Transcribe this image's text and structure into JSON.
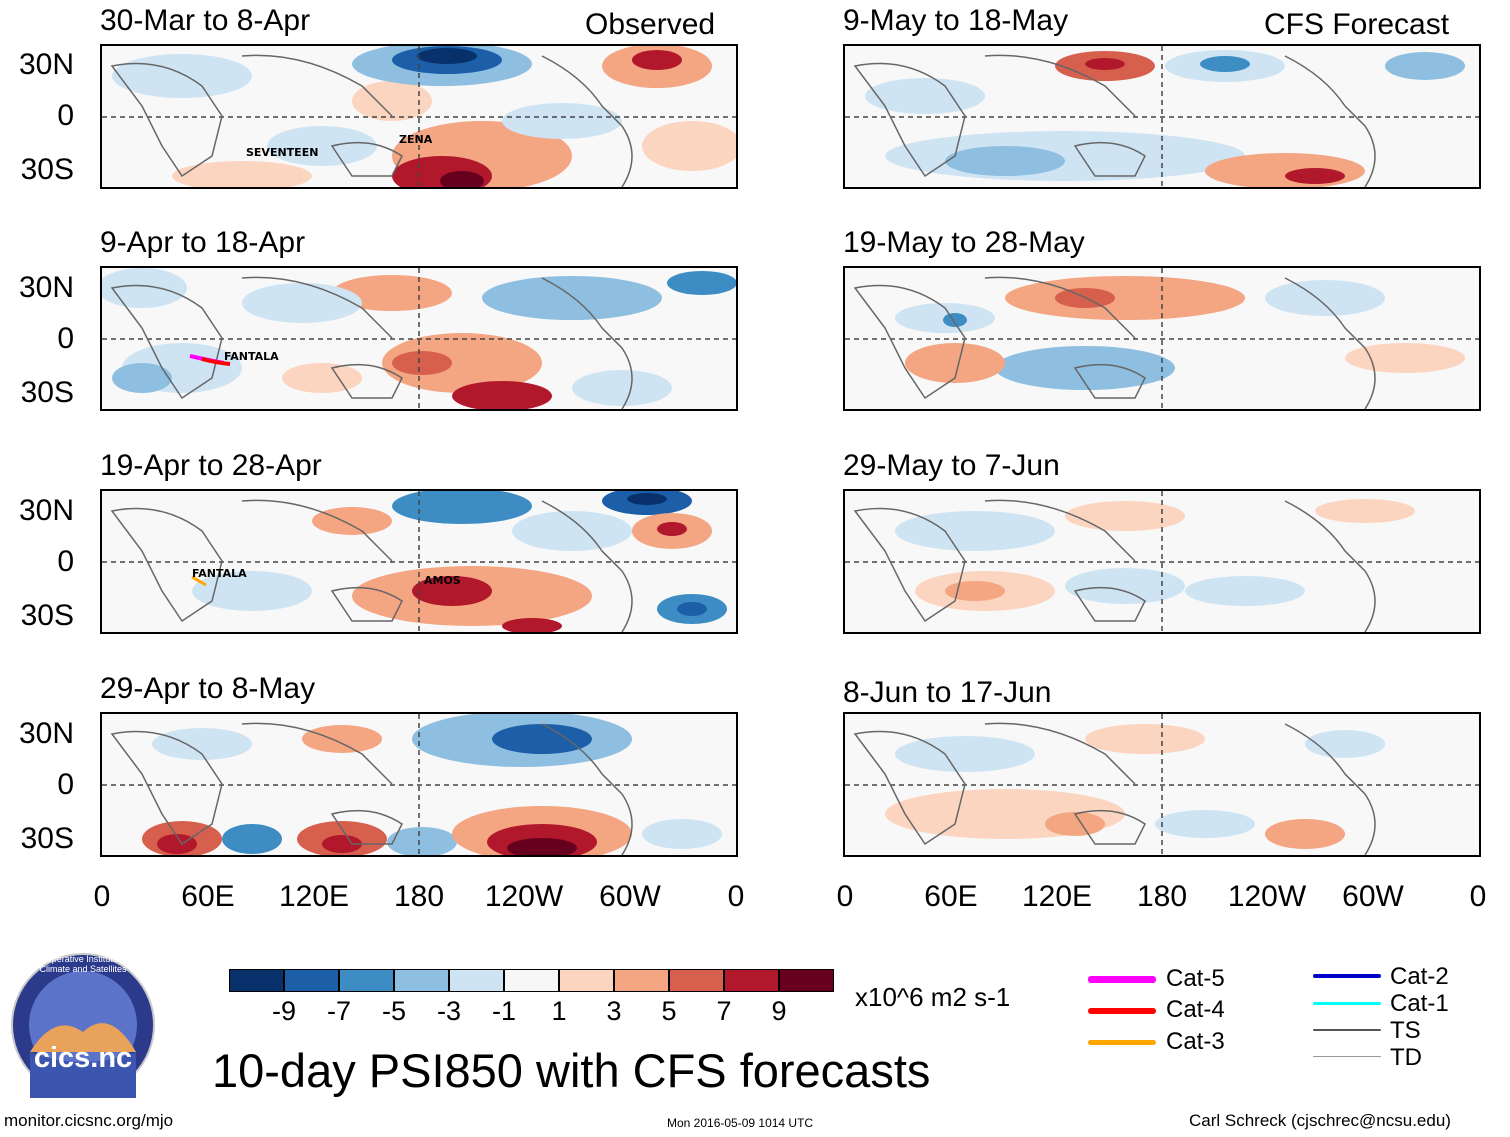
{
  "header": {
    "left_label": "Observed",
    "right_label": "CFS Forecast"
  },
  "panels_left": [
    {
      "title": "30-Mar to 8-Apr",
      "storms": [
        "SEVENTEEN",
        "ZENA"
      ]
    },
    {
      "title": "9-Apr to 18-Apr",
      "storms": [
        "FANTALA"
      ]
    },
    {
      "title": "19-Apr to 28-Apr",
      "storms": [
        "FANTALA",
        "AMOS"
      ]
    },
    {
      "title": "29-Apr to 8-May",
      "storms": []
    }
  ],
  "panels_right": [
    {
      "title": "9-May to 18-May"
    },
    {
      "title": "19-May to 28-May"
    },
    {
      "title": "29-May to 7-Jun"
    },
    {
      "title": "8-Jun to 17-Jun"
    }
  ],
  "y_axis": {
    "labels": [
      "30N",
      "0",
      "30S"
    ]
  },
  "x_axis": {
    "labels": [
      "0",
      "60E",
      "120E",
      "180",
      "120W",
      "60W",
      "0"
    ]
  },
  "colorbar": {
    "units": "x10^6 m2 s-1",
    "tick_labels": [
      "-9",
      "-7",
      "-5",
      "-3",
      "-1",
      "1",
      "3",
      "5",
      "7",
      "9"
    ],
    "colors": [
      "#08306b",
      "#1c5fa8",
      "#3d8cc4",
      "#8ebfe0",
      "#cfe4f3",
      "#f7f7f7",
      "#fcd5c0",
      "#f4a582",
      "#d6604d",
      "#b2182b",
      "#67001f"
    ]
  },
  "legend": {
    "items": [
      {
        "label": "Cat-5",
        "color": "#ff00ff"
      },
      {
        "label": "Cat-4",
        "color": "#ff0000"
      },
      {
        "label": "Cat-3",
        "color": "#ffa500"
      },
      {
        "label": "Cat-2",
        "color": "#0000cc"
      },
      {
        "label": "Cat-1",
        "color": "#00ffff"
      },
      {
        "label": "TS",
        "color": "#555555"
      },
      {
        "label": "TD",
        "color": "#999999"
      }
    ]
  },
  "footer": {
    "main_title": "10-day PSI850 with CFS forecasts",
    "url": "monitor.cicsnc.org/mjo",
    "timestamp": "Mon 2016-05-09 1014 UTC",
    "author": "Carl Schreck (cjschrec@ncsu.edu)"
  },
  "logo": {
    "ring_text": "Cooperative Institute for Climate and Satellites",
    "name": "cics.nc"
  }
}
